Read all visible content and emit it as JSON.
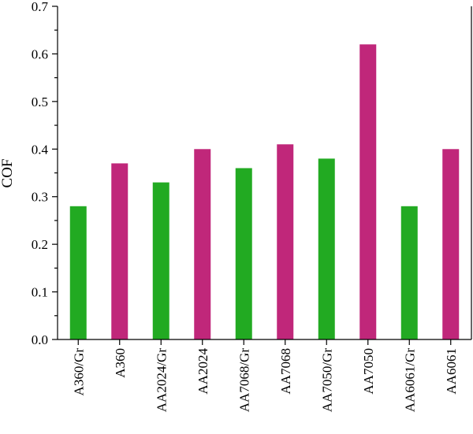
{
  "chart_data": {
    "type": "bar",
    "ylabel": "COF",
    "xlabel": "",
    "ylim": [
      0,
      0.7
    ],
    "yticks": [
      "0.0",
      "0.1",
      "0.2",
      "0.3",
      "0.4",
      "0.5",
      "0.6",
      "0.7"
    ],
    "categories": [
      "A360/Gr",
      "A360",
      "AA2024/Gr",
      "AA2024",
      "AA7068/Gr",
      "AA7068",
      "AA7050/Gr",
      "AA7050",
      "AA6061/Gr",
      "AA6061"
    ],
    "values": [
      0.28,
      0.37,
      0.33,
      0.4,
      0.36,
      0.41,
      0.38,
      0.62,
      0.28,
      0.4
    ],
    "bar_colors": [
      "#22aa22",
      "#c0277a",
      "#22aa22",
      "#c0277a",
      "#22aa22",
      "#c0277a",
      "#22aa22",
      "#c0277a",
      "#22aa22",
      "#c0277a"
    ],
    "legend": "none",
    "grid": false
  }
}
